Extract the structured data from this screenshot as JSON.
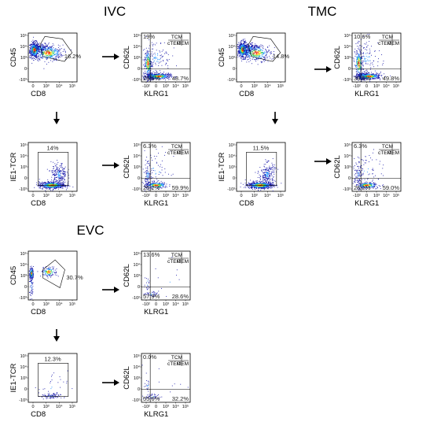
{
  "titles": [
    "IVC",
    "TMC",
    "EVC"
  ],
  "labels": {
    "cd45": "CD45",
    "cd8": "CD8",
    "cd62l": "CD62L",
    "klrg1": "KLRG1",
    "ie1tcr": "IE1-TCR"
  },
  "legend": {
    "tcm": "TCM",
    "ctem": "cTEM",
    "item": "iTEM"
  },
  "ticks": {
    "cd45_y": [
      "10⁵",
      "10⁴",
      "10³",
      "0",
      "-10³"
    ],
    "cd8_x": [
      "0",
      "10³",
      "10⁴",
      "10⁵"
    ],
    "ie1_y": [
      "10⁵",
      "10⁴",
      "10³",
      "0",
      "-10³"
    ],
    "cd62l_y": [
      "10⁵",
      "10⁴",
      "10³",
      "0",
      "-10²"
    ],
    "klrg1_x": [
      "-10²",
      "0",
      "10³",
      "10⁴",
      "10⁵"
    ]
  },
  "colors": {
    "hot": "#ff2a00",
    "warm": "#ffd000",
    "mid": "#30d060",
    "cool": "#1a8cff",
    "cold": "#1414a8"
  },
  "sections": [
    {
      "name": "IVC",
      "cd45_gate_pct": "16.2%",
      "ie1_gate_pct": "14%",
      "top_quad": {
        "tl": "19%",
        "bl": "29.6%",
        "br": "48.7%"
      },
      "bottom_quad": {
        "tl": "6.3%",
        "bl": "26.2%",
        "br": "59.9%"
      }
    },
    {
      "name": "TMC",
      "cd45_gate_pct": "14.8%",
      "ie1_gate_pct": "11.5%",
      "top_quad": {
        "tl": "10.6%",
        "bl": "38.6%",
        "br": "49.8%"
      },
      "bottom_quad": {
        "tl": "6.3%",
        "bl": "26.2%",
        "br": "59.0%"
      }
    },
    {
      "name": "EVC",
      "cd45_gate_pct": "30.7%",
      "ie1_gate_pct": "12.3%",
      "top_quad": {
        "tl": "13.6%",
        "bl": "57.9%",
        "br": "28.6%"
      },
      "bottom_quad": {
        "tl": "0.0%",
        "bl": "55.6%",
        "br": "32.2%"
      }
    }
  ]
}
